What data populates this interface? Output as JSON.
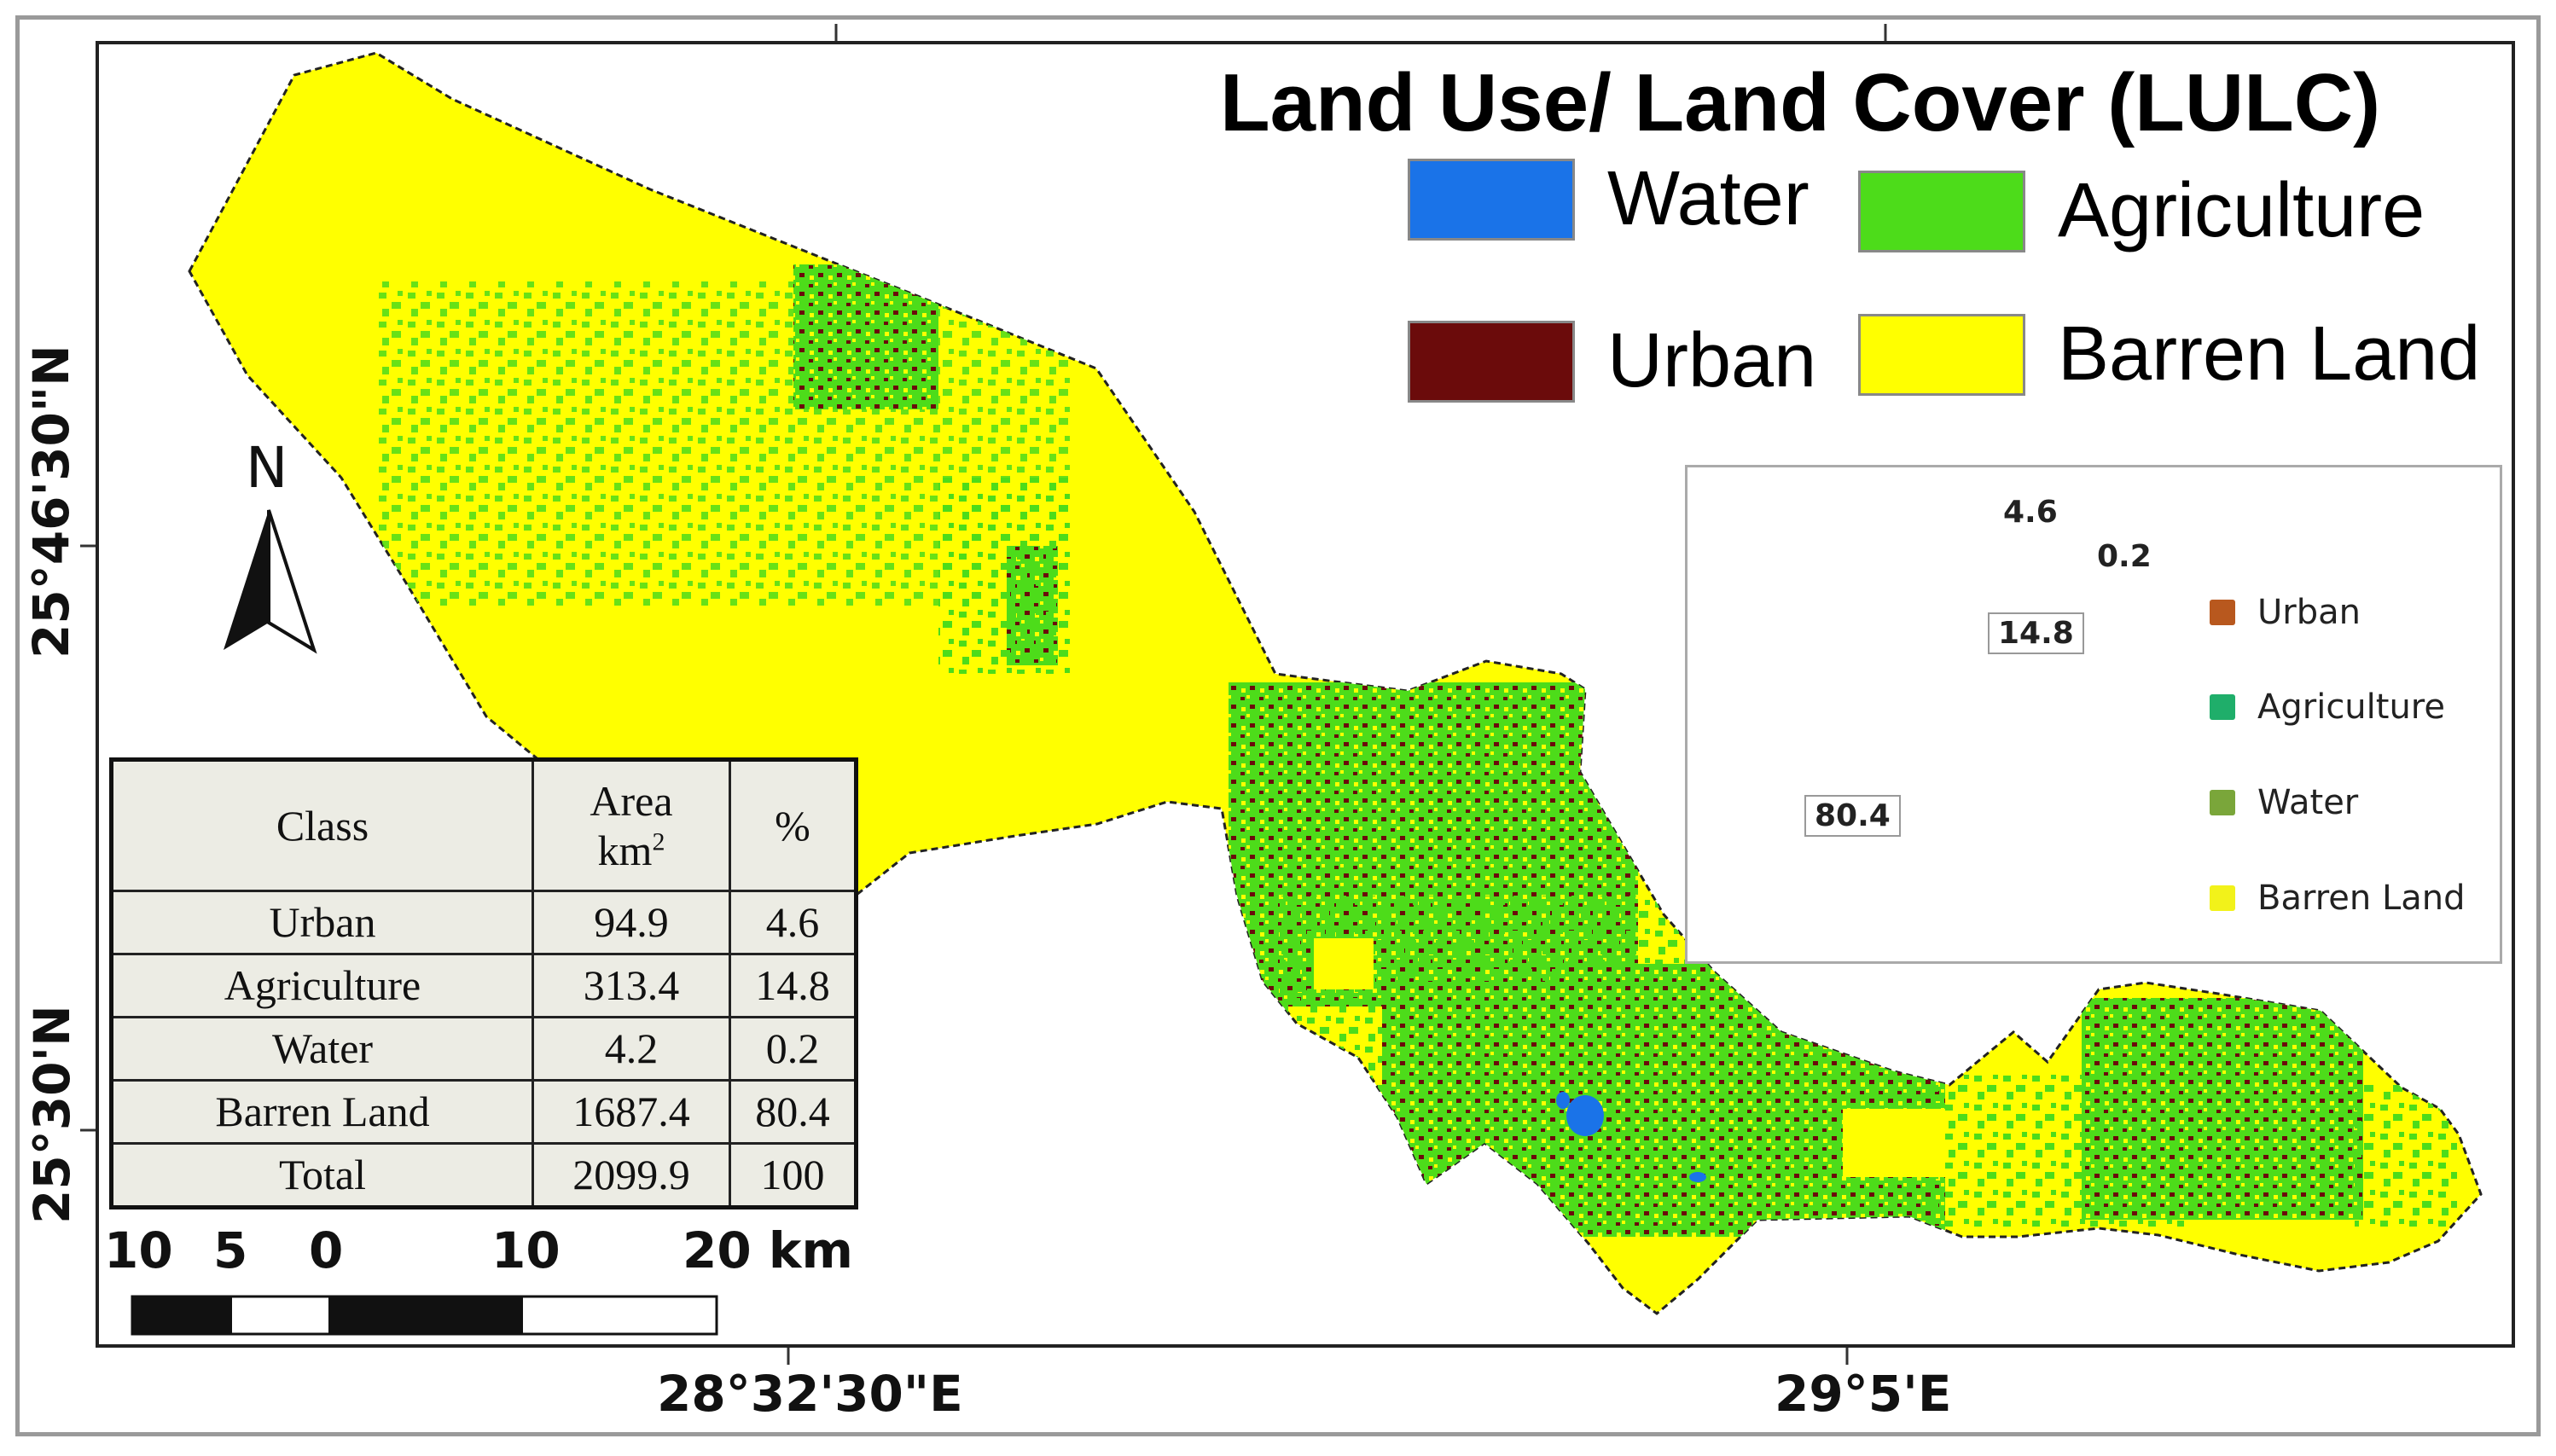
{
  "title": "Land Use/ Land Cover (LULC)",
  "legend": [
    {
      "label": "Water",
      "color": "#1a73e8"
    },
    {
      "label": "Agriculture",
      "color": "#4ddc1a"
    },
    {
      "label": "Urban",
      "color": "#6b0b0b"
    },
    {
      "label": "Barren Land",
      "color": "#ffff00"
    }
  ],
  "pie": {
    "slices": [
      {
        "name": "Urban",
        "value": 4.6,
        "color": "#b8581e"
      },
      {
        "name": "Agriculture",
        "value": 14.8,
        "color": "#1fae6a"
      },
      {
        "name": "Water",
        "value": 0.2,
        "color": "#7aa63a"
      },
      {
        "name": "Barren Land",
        "value": 80.4,
        "color": "#f2f21a"
      }
    ],
    "labels": {
      "urban": "4.6",
      "agriculture": "14.8",
      "water": "0.2",
      "barren": "80.4"
    }
  },
  "table": {
    "headers": {
      "class": "Class",
      "area": "Area",
      "area_unit": "km",
      "area_sup": "2",
      "percent": "%"
    },
    "rows": [
      {
        "class": "Urban",
        "area": "94.9",
        "percent": "4.6"
      },
      {
        "class": "Agriculture",
        "area": "313.4",
        "percent": "14.8"
      },
      {
        "class": "Water",
        "area": "4.2",
        "percent": "0.2"
      },
      {
        "class": "Barren Land",
        "area": "1687.4",
        "percent": "80.4"
      },
      {
        "class": "Total",
        "area": "2099.9",
        "percent": "100"
      }
    ]
  },
  "scale_bar": {
    "labels": [
      "10",
      "5",
      "0",
      "10",
      "20 km"
    ]
  },
  "north_arrow": {
    "label": "N"
  },
  "coordinates": {
    "lat_top": "25°46'30\"N",
    "lat_bottom": "25°30'N",
    "lon_left": "28°32'30\"E",
    "lon_right": "29°5'E"
  },
  "colors": {
    "barren": "#ffff00",
    "agriculture": "#4ddc1a",
    "urban": "#6b0b0b",
    "water": "#1a73e8",
    "frame": "#222222"
  }
}
